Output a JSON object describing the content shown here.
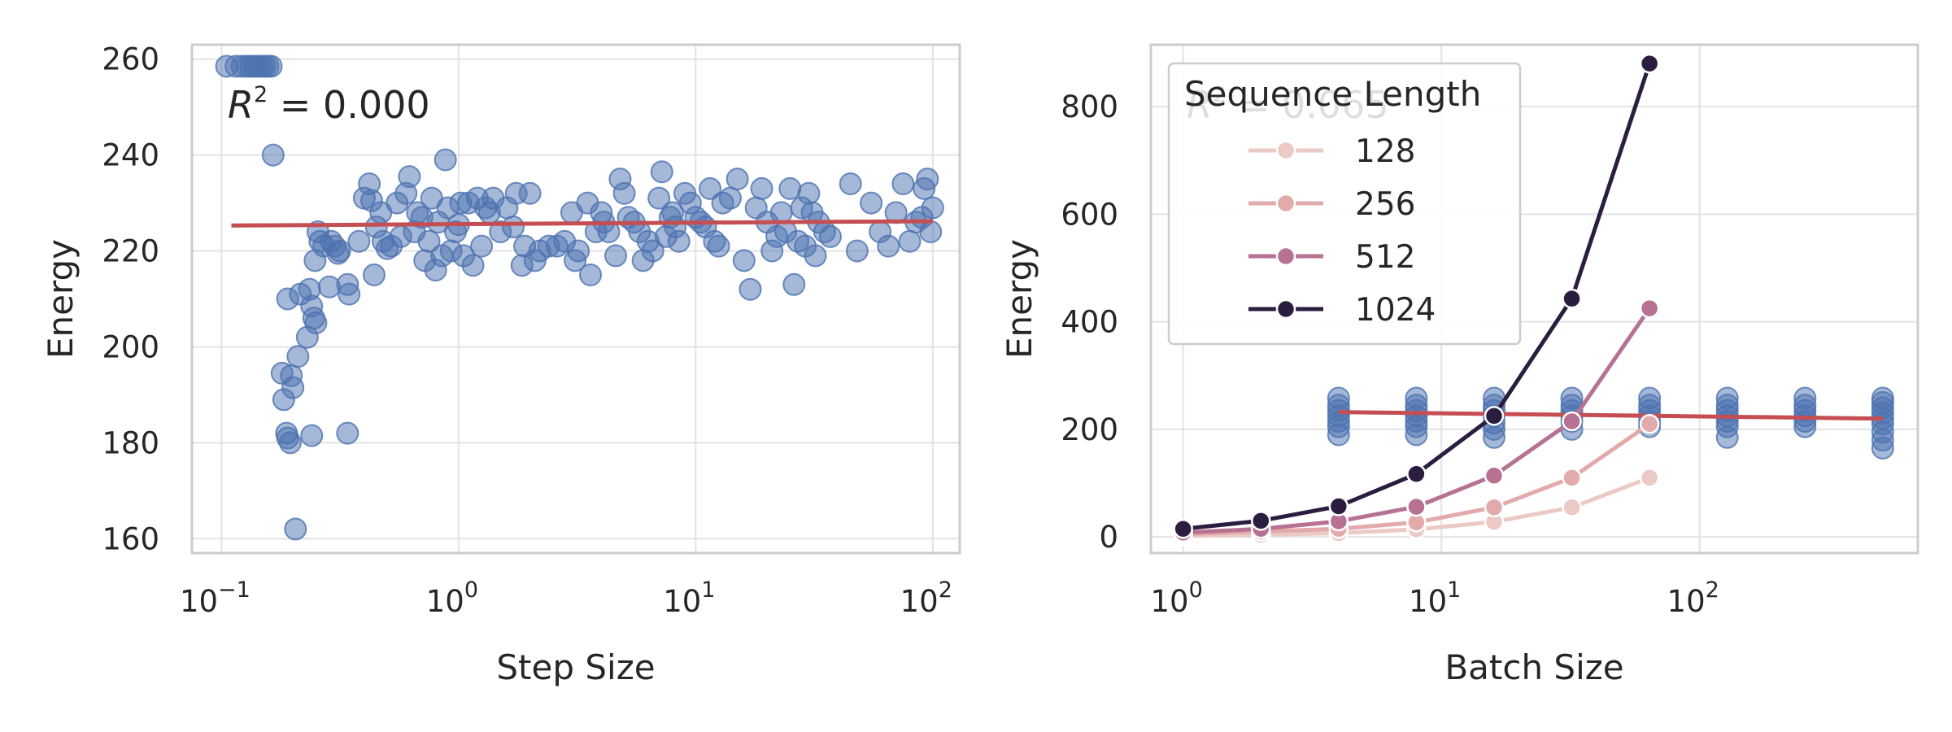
{
  "chart_data": [
    {
      "type": "scatter",
      "xlabel": "Step Size",
      "ylabel": "Energy",
      "xscale": "log",
      "xlim": [
        0.075,
        130
      ],
      "ylim": [
        157,
        263
      ],
      "xticks": [
        {
          "base": "10",
          "exp": "−1"
        },
        {
          "base": "10",
          "exp": "0"
        },
        {
          "base": "10",
          "exp": "1"
        },
        {
          "base": "10",
          "exp": "2"
        }
      ],
      "yticks": [
        "160",
        "180",
        "200",
        "220",
        "240",
        "260"
      ],
      "grid": true,
      "annotation": {
        "text": "R",
        "sup": "2",
        "rest": " = 0.000"
      },
      "colors": {
        "points": "#4c72b0",
        "fit": "#c44e52"
      },
      "fit_line": {
        "x": [
          0.11,
          100
        ],
        "y": [
          225.3,
          226.2
        ]
      },
      "points": [
        [
          0.105,
          258.5
        ],
        [
          0.115,
          258.5
        ],
        [
          0.122,
          258.5
        ],
        [
          0.128,
          258.5
        ],
        [
          0.133,
          258.5
        ],
        [
          0.138,
          258.5
        ],
        [
          0.143,
          258.5
        ],
        [
          0.148,
          258.5
        ],
        [
          0.152,
          258.5
        ],
        [
          0.157,
          258.5
        ],
        [
          0.162,
          258.5
        ],
        [
          0.165,
          240
        ],
        [
          0.18,
          194.5
        ],
        [
          0.183,
          189
        ],
        [
          0.188,
          182
        ],
        [
          0.19,
          181
        ],
        [
          0.195,
          180
        ],
        [
          0.197,
          194
        ],
        [
          0.2,
          191.5
        ],
        [
          0.205,
          162
        ],
        [
          0.19,
          210
        ],
        [
          0.21,
          198
        ],
        [
          0.215,
          211
        ],
        [
          0.23,
          202
        ],
        [
          0.235,
          212
        ],
        [
          0.24,
          208.5
        ],
        [
          0.245,
          206
        ],
        [
          0.25,
          205
        ],
        [
          0.248,
          218
        ],
        [
          0.255,
          224
        ],
        [
          0.26,
          222
        ],
        [
          0.27,
          221
        ],
        [
          0.285,
          212.5
        ],
        [
          0.29,
          222
        ],
        [
          0.3,
          221
        ],
        [
          0.31,
          219.5
        ],
        [
          0.315,
          220
        ],
        [
          0.34,
          213
        ],
        [
          0.345,
          211
        ],
        [
          0.24,
          181.5
        ],
        [
          0.34,
          182
        ],
        [
          0.38,
          222
        ],
        [
          0.4,
          231
        ],
        [
          0.42,
          234
        ],
        [
          0.43,
          230.5
        ],
        [
          0.44,
          215
        ],
        [
          0.45,
          225
        ],
        [
          0.47,
          228
        ],
        [
          0.48,
          222
        ],
        [
          0.5,
          220.5
        ],
        [
          0.52,
          221
        ],
        [
          0.55,
          230
        ],
        [
          0.57,
          223
        ],
        [
          0.6,
          232
        ],
        [
          0.62,
          235.5
        ],
        [
          0.65,
          224
        ],
        [
          0.67,
          228
        ],
        [
          0.7,
          227
        ],
        [
          0.72,
          218
        ],
        [
          0.75,
          222
        ],
        [
          0.77,
          231
        ],
        [
          0.8,
          216
        ],
        [
          0.82,
          226
        ],
        [
          0.85,
          219
        ],
        [
          0.88,
          239
        ],
        [
          0.9,
          229
        ],
        [
          0.93,
          220
        ],
        [
          0.97,
          224
        ],
        [
          1.0,
          225.5
        ],
        [
          1.02,
          230
        ],
        [
          1.05,
          219
        ],
        [
          1.1,
          230
        ],
        [
          1.15,
          217
        ],
        [
          1.2,
          231
        ],
        [
          1.25,
          221
        ],
        [
          1.3,
          229
        ],
        [
          1.35,
          228
        ],
        [
          1.4,
          231
        ],
        [
          1.5,
          224
        ],
        [
          1.6,
          229
        ],
        [
          1.7,
          225
        ],
        [
          1.75,
          232
        ],
        [
          1.85,
          217
        ],
        [
          1.9,
          221
        ],
        [
          2.0,
          232
        ],
        [
          2.1,
          218
        ],
        [
          2.2,
          220
        ],
        [
          2.4,
          221
        ],
        [
          2.6,
          221
        ],
        [
          2.8,
          222
        ],
        [
          3.0,
          228
        ],
        [
          3.1,
          218
        ],
        [
          3.2,
          220
        ],
        [
          3.5,
          230
        ],
        [
          3.6,
          215
        ],
        [
          3.8,
          224
        ],
        [
          4.0,
          228
        ],
        [
          4.1,
          226
        ],
        [
          4.3,
          224
        ],
        [
          4.6,
          219
        ],
        [
          4.8,
          235
        ],
        [
          5.0,
          232
        ],
        [
          5.2,
          227
        ],
        [
          5.5,
          226
        ],
        [
          5.8,
          224
        ],
        [
          6.0,
          218
        ],
        [
          6.3,
          222
        ],
        [
          6.6,
          220
        ],
        [
          7.0,
          231
        ],
        [
          7.2,
          236.5
        ],
        [
          7.5,
          223
        ],
        [
          7.8,
          227
        ],
        [
          8.0,
          228
        ],
        [
          8.2,
          225
        ],
        [
          8.5,
          222
        ],
        [
          9.0,
          232
        ],
        [
          9.5,
          230
        ],
        [
          10.0,
          227
        ],
        [
          10.5,
          226
        ],
        [
          11.0,
          225
        ],
        [
          11.5,
          233
        ],
        [
          12.0,
          222
        ],
        [
          12.5,
          221
        ],
        [
          13.0,
          230
        ],
        [
          14.0,
          231
        ],
        [
          15.0,
          235
        ],
        [
          16.0,
          218
        ],
        [
          17.0,
          212
        ],
        [
          18.0,
          229
        ],
        [
          19.0,
          233
        ],
        [
          20.0,
          226
        ],
        [
          21.0,
          220
        ],
        [
          22.0,
          223
        ],
        [
          23.0,
          228
        ],
        [
          24.0,
          224
        ],
        [
          25.0,
          233
        ],
        [
          26.0,
          213
        ],
        [
          27.0,
          222
        ],
        [
          28.0,
          229
        ],
        [
          29.0,
          221
        ],
        [
          30.0,
          232
        ],
        [
          31.0,
          228
        ],
        [
          32.0,
          219
        ],
        [
          33.0,
          226
        ],
        [
          35.0,
          224
        ],
        [
          37.0,
          223
        ],
        [
          45.0,
          234
        ],
        [
          48.0,
          220
        ],
        [
          55.0,
          230
        ],
        [
          60.0,
          224
        ],
        [
          65.0,
          221
        ],
        [
          70.0,
          228
        ],
        [
          75.0,
          234
        ],
        [
          80.0,
          222
        ],
        [
          85.0,
          226
        ],
        [
          90.0,
          227
        ],
        [
          92.0,
          233
        ],
        [
          95.0,
          235
        ],
        [
          98.0,
          224
        ],
        [
          100.0,
          229
        ]
      ]
    },
    {
      "type": "line",
      "xlabel": "Batch Size",
      "ylabel": "Energy",
      "xscale": "log",
      "xlim": [
        0.75,
        700
      ],
      "ylim": [
        -30,
        915
      ],
      "xticks": [
        {
          "base": "10",
          "exp": "0"
        },
        {
          "base": "10",
          "exp": "1"
        },
        {
          "base": "10",
          "exp": "2"
        }
      ],
      "yticks": [
        "0",
        "200",
        "400",
        "600",
        "800"
      ],
      "grid": true,
      "annotation": {
        "text": "R",
        "sup": "2",
        "rest": " = 0.065"
      },
      "legend": {
        "title": "Sequence Length",
        "position": "upper-left"
      },
      "x": [
        1,
        2,
        4,
        8,
        16,
        32,
        64
      ],
      "series": [
        {
          "name": "128",
          "color": "#ebcac6",
          "values": [
            2,
            4,
            7,
            14,
            28,
            55,
            110
          ]
        },
        {
          "name": "256",
          "color": "#e2aaab",
          "values": [
            5,
            10,
            15,
            27,
            55,
            110,
            210
          ]
        },
        {
          "name": "512",
          "color": "#b67193",
          "values": [
            8,
            15,
            29,
            56,
            114,
            215,
            425
          ]
        },
        {
          "name": "1024",
          "color": "#2b1d40",
          "values": [
            15,
            30,
            57,
            117,
            225,
            443,
            880
          ]
        }
      ],
      "colors": {
        "points": "#4c72b0",
        "fit": "#c44e52"
      },
      "fit_line": {
        "x": [
          4,
          512
        ],
        "y": [
          232,
          220
        ]
      },
      "point_columns": [
        {
          "x": 4,
          "y": [
            190,
            205,
            215,
            225,
            235,
            245,
            258
          ]
        },
        {
          "x": 8,
          "y": [
            190,
            205,
            215,
            225,
            235,
            245,
            258
          ]
        },
        {
          "x": 16,
          "y": [
            185,
            200,
            212,
            225,
            235,
            245,
            258
          ]
        },
        {
          "x": 32,
          "y": [
            200,
            215,
            225,
            235,
            245,
            258
          ]
        },
        {
          "x": 64,
          "y": [
            205,
            215,
            225,
            235,
            245,
            258
          ]
        },
        {
          "x": 128,
          "y": [
            185,
            205,
            215,
            225,
            235,
            245,
            258
          ]
        },
        {
          "x": 256,
          "y": [
            205,
            215,
            225,
            235,
            245,
            258
          ]
        },
        {
          "x": 512,
          "y": [
            165,
            180,
            195,
            210,
            220,
            230,
            240,
            250,
            258
          ]
        }
      ]
    }
  ]
}
